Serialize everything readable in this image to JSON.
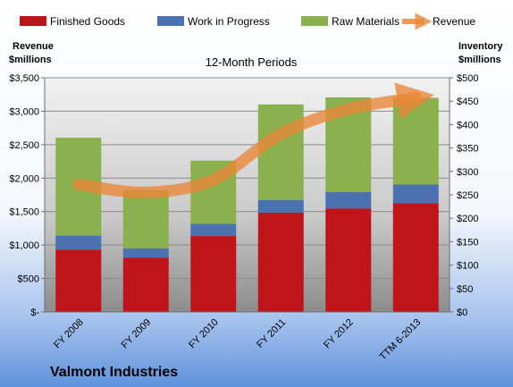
{
  "chart_data": {
    "type": "bar",
    "subtitle": "12-Month Periods",
    "company": "Valmont Industries",
    "categories": [
      "FY 2008",
      "FY 2009",
      "FY 2010",
      "FY 2011",
      "FY 2012",
      "TTM 6-2013"
    ],
    "left_axis": {
      "title_line1": "Revenue",
      "title_line2": "$millions",
      "ticks": [
        "$-",
        "$500",
        "$1,000",
        "$1,500",
        "$2,000",
        "$2,500",
        "$3,000",
        "$3,500"
      ],
      "ylim": [
        0,
        3500
      ]
    },
    "right_axis": {
      "title_line1": "Inventory",
      "title_line2": "$millions",
      "ticks": [
        "$0",
        "$50",
        "$100",
        "$150",
        "$200",
        "$250",
        "$300",
        "$350",
        "$400",
        "$450",
        "$500"
      ],
      "ylim": [
        0,
        500
      ]
    },
    "series": [
      {
        "name": "Finished Goods",
        "axis": "right",
        "color": "#c0141b",
        "values": [
          133,
          116,
          162,
          212,
          221,
          232
        ]
      },
      {
        "name": "Work in Progress",
        "axis": "right",
        "color": "#4a72b0",
        "values": [
          30,
          20,
          26,
          27,
          35,
          40
        ]
      },
      {
        "name": "Raw Materials",
        "axis": "right",
        "color": "#8bb04e",
        "values": [
          209,
          124,
          135,
          204,
          202,
          185
        ]
      },
      {
        "name": "Revenue",
        "axis": "left",
        "type": "line",
        "color": "#e8883a",
        "values": [
          1907,
          1786,
          1975,
          2661,
          3030,
          3200
        ]
      }
    ],
    "grid": true,
    "legend": "top"
  }
}
